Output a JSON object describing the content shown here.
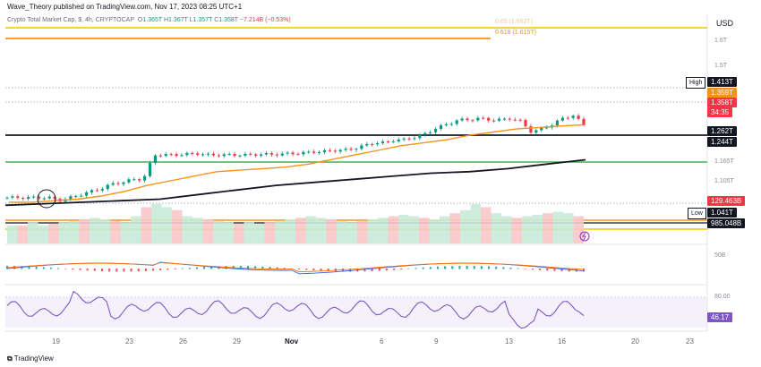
{
  "header": {
    "published_text": "Wave_Theory published on TradingView.com, Nov 17, 2023 08:25 UTC+1"
  },
  "symbol": {
    "name": "Crypto Total Market Cap, $, 4h, CRYPTOCAP",
    "open_label": "O",
    "open": "1.365T",
    "high_label": "H",
    "high": "1.367T",
    "low_label": "L",
    "low": "1.357T",
    "close_label": "C",
    "close": "1.358T",
    "change": "−7.214B (−0.53%)"
  },
  "currency": "USD",
  "fib_labels": {
    "fib65": "0.65 (1.662T)",
    "fib618": "0.618 (1.615T)"
  },
  "price_ticks": [
    "1.6T",
    "1.5T",
    "1.165T",
    "1.105T"
  ],
  "price_tags": {
    "high_label": "High",
    "high": "1.413T",
    "ema50": "1.359T",
    "last": "1.358T",
    "countdown": "34:35",
    "level1": "1.262T",
    "level2": "1.244T",
    "volume": "129.463B",
    "low_label": "Low",
    "low": "1.041T",
    "volume_ma": "985.048B"
  },
  "macd": {
    "tick": "50B"
  },
  "rsi": {
    "tick": "80.00",
    "value": "46.17"
  },
  "dates": [
    "19",
    "23",
    "26",
    "29",
    "Nov",
    "6",
    "9",
    "13",
    "16",
    "20",
    "23"
  ],
  "footer": {
    "brand": "TradingView"
  },
  "colors": {
    "bull": "#089981",
    "bear": "#f23645",
    "ema50": "#f7931a",
    "ema200": "#131722",
    "rsi": "#7e57c2",
    "fib": "#f5c000",
    "support": "#4caf50"
  },
  "chart_data": {
    "type": "candlestick",
    "timeframe": "4h",
    "ylim": [
      1.04,
      1.68
    ],
    "close_series": [
      1.12,
      1.12,
      1.12,
      1.12,
      1.12,
      1.11,
      1.12,
      1.13,
      1.14,
      1.15,
      1.165,
      1.17,
      1.18,
      1.18,
      1.26,
      1.26,
      1.26,
      1.262,
      1.265,
      1.26,
      1.26,
      1.26,
      1.26,
      1.26,
      1.262,
      1.262,
      1.262,
      1.265,
      1.265,
      1.27,
      1.27,
      1.275,
      1.275,
      1.28,
      1.29,
      1.3,
      1.3,
      1.31,
      1.31,
      1.32,
      1.33,
      1.35,
      1.36,
      1.375,
      1.375,
      1.38,
      1.375,
      1.375,
      1.38,
      1.37,
      1.335,
      1.345,
      1.36,
      1.38,
      1.39,
      1.358
    ],
    "ema50_series": [
      1.105,
      1.105,
      1.11,
      1.115,
      1.125,
      1.14,
      1.16,
      1.175,
      1.19,
      1.205,
      1.21,
      1.215,
      1.22,
      1.23,
      1.245,
      1.26,
      1.275,
      1.29,
      1.3,
      1.31,
      1.325,
      1.335,
      1.345,
      1.35,
      1.355,
      1.359
    ],
    "ema200_series": [
      1.095,
      1.1,
      1.105,
      1.11,
      1.115,
      1.13,
      1.145,
      1.16,
      1.17,
      1.18,
      1.19,
      1.2,
      1.205,
      1.215,
      1.23,
      1.244
    ],
    "levels": {
      "fib_0.65": 1.662,
      "fib_0.618": 1.615,
      "high": 1.413,
      "resistance": 1.262,
      "support_green": 1.165,
      "low": 1.041
    },
    "rsi_last": 46.17
  }
}
